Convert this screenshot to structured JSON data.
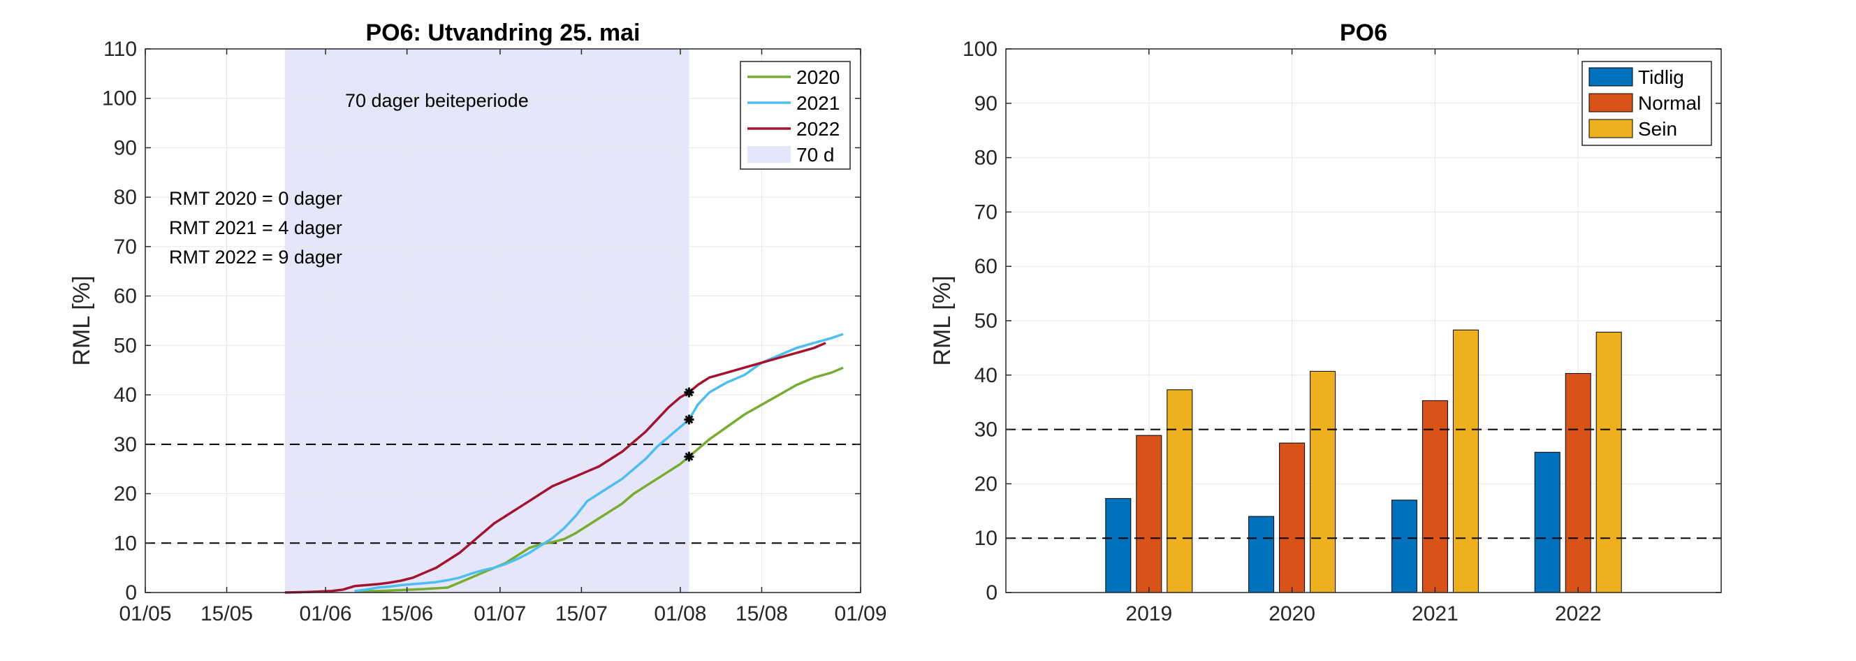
{
  "chart_data": [
    {
      "type": "line",
      "title": "PO6: Utvandring 25. mai",
      "xlabel": "",
      "ylabel": "RML [%]",
      "xlim_days": [
        0,
        123
      ],
      "ylim": [
        0,
        110
      ],
      "yticks": [
        0,
        10,
        20,
        30,
        40,
        50,
        60,
        70,
        80,
        90,
        100,
        110
      ],
      "xticks": [
        {
          "day": 0,
          "label": "01/05"
        },
        {
          "day": 14,
          "label": "15/05"
        },
        {
          "day": 31,
          "label": "01/06"
        },
        {
          "day": 45,
          "label": "15/06"
        },
        {
          "day": 61,
          "label": "01/07"
        },
        {
          "day": 75,
          "label": "15/07"
        },
        {
          "day": 92,
          "label": "01/08"
        },
        {
          "day": 106,
          "label": "15/08"
        },
        {
          "day": 123,
          "label": "01/09"
        }
      ],
      "x_unit": "days since 01/05",
      "grid": true,
      "shaded_period": {
        "start_day": 24,
        "end_day": 93.5,
        "label": "70 d",
        "color": "#e6e6fa"
      },
      "period_annotation": "70 dager beiteperiode",
      "annotations": [
        "RMT 2020 = 0 dager",
        "RMT 2021 = 4 dager",
        "RMT 2022 = 9 dager"
      ],
      "thresholds": [
        10,
        30
      ],
      "legend_position": "top-right",
      "series": [
        {
          "name": "2020",
          "color": "#77ac30",
          "x": [
            36,
            40,
            44,
            48,
            52,
            54,
            56,
            58,
            60,
            62,
            64,
            66,
            68,
            70,
            72,
            74,
            76,
            78,
            80,
            82,
            84,
            86,
            88,
            90,
            92,
            93.5,
            95,
            97,
            100,
            103,
            106,
            109,
            112,
            115,
            118,
            120
          ],
          "y": [
            0.2,
            0.3,
            0.5,
            0.7,
            1.0,
            2.0,
            3.0,
            4.0,
            5.0,
            6.0,
            7.5,
            9.0,
            9.8,
            10.2,
            10.8,
            12.0,
            13.5,
            15.0,
            16.5,
            18.0,
            20.0,
            21.5,
            23.0,
            24.5,
            26.0,
            27.5,
            29.0,
            31.0,
            33.5,
            36.0,
            38.0,
            40.0,
            42.0,
            43.5,
            44.5,
            45.5
          ]
        },
        {
          "name": "2021",
          "color": "#4dbeee",
          "x": [
            36,
            38,
            40,
            42,
            44,
            46,
            48,
            50,
            52,
            54,
            56,
            58,
            60,
            62,
            64,
            66,
            68,
            70,
            72,
            74,
            76,
            78,
            80,
            82,
            84,
            86,
            88,
            90,
            92,
            93.5,
            95,
            97,
            100,
            103,
            106,
            109,
            112,
            115,
            118,
            120
          ],
          "y": [
            0.3,
            0.6,
            1.0,
            1.2,
            1.5,
            1.7,
            1.9,
            2.1,
            2.5,
            3.0,
            3.8,
            4.5,
            5.0,
            5.8,
            6.8,
            8.0,
            9.5,
            11.0,
            13.0,
            15.5,
            18.5,
            20.0,
            21.5,
            23.0,
            25.0,
            27.0,
            29.5,
            31.5,
            33.5,
            35.0,
            38.0,
            40.5,
            42.5,
            44.0,
            46.5,
            48.0,
            49.5,
            50.5,
            51.5,
            52.3
          ]
        },
        {
          "name": "2022",
          "color": "#a2142f",
          "x": [
            24,
            28,
            32,
            34,
            36,
            38,
            40,
            42,
            44,
            46,
            48,
            50,
            52,
            54,
            56,
            58,
            60,
            62,
            64,
            66,
            68,
            70,
            72,
            74,
            76,
            78,
            80,
            82,
            84,
            86,
            88,
            90,
            92,
            93.5,
            95,
            97,
            100,
            103,
            106,
            109,
            112,
            115,
            117
          ],
          "y": [
            0,
            0.1,
            0.3,
            0.6,
            1.3,
            1.5,
            1.7,
            2.0,
            2.4,
            3.0,
            4.0,
            5.0,
            6.5,
            8.0,
            10.0,
            12.0,
            14.0,
            15.5,
            17.0,
            18.5,
            20.0,
            21.5,
            22.5,
            23.5,
            24.5,
            25.5,
            27.0,
            28.5,
            30.5,
            32.5,
            35.0,
            37.5,
            39.5,
            40.5,
            42.0,
            43.5,
            44.5,
            45.5,
            46.5,
            47.5,
            48.5,
            49.5,
            50.5
          ]
        }
      ],
      "markers": [
        {
          "x": 93.5,
          "y": 40.5
        },
        {
          "x": 93.5,
          "y": 35.0
        },
        {
          "x": 93.5,
          "y": 27.5
        }
      ]
    },
    {
      "type": "bar",
      "title": "PO6",
      "xlabel": "",
      "ylabel": "RML [%]",
      "categories": [
        "2019",
        "2020",
        "2021",
        "2022"
      ],
      "ylim": [
        0,
        100
      ],
      "yticks": [
        0,
        10,
        20,
        30,
        40,
        50,
        60,
        70,
        80,
        90,
        100
      ],
      "grid": true,
      "thresholds": [
        10,
        30
      ],
      "legend_position": "top-right",
      "series": [
        {
          "name": "Tidlig",
          "color": "#0072bd",
          "values": [
            17.3,
            14.0,
            17.0,
            25.8
          ]
        },
        {
          "name": "Normal",
          "color": "#d95319",
          "values": [
            28.9,
            27.5,
            35.3,
            40.3
          ]
        },
        {
          "name": "Sein",
          "color": "#edb120",
          "values": [
            37.3,
            40.7,
            48.3,
            47.9
          ]
        }
      ]
    }
  ]
}
